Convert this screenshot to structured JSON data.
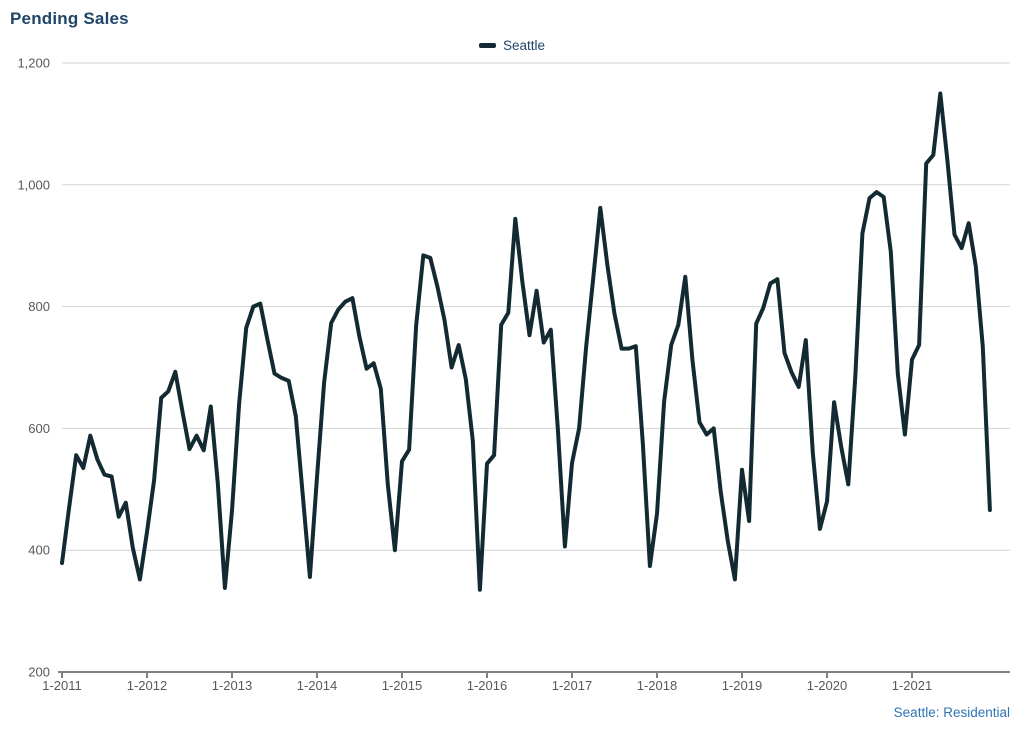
{
  "header": {
    "title": "Pending Sales"
  },
  "legend": {
    "series_label": "Seattle",
    "swatch_color": "#142A33"
  },
  "footer": {
    "source_label": "Seattle: Residential",
    "source_color": "#2E74B5"
  },
  "colors": {
    "title_text": "#1F4568",
    "line": "#142A33",
    "gridline": "#D2D2D2",
    "axis_line": "#808080",
    "tick_text": "#595959",
    "background": "#FFFFFF"
  },
  "chart_data": {
    "type": "line",
    "title": "Pending Sales",
    "xlabel": "",
    "ylabel": "",
    "ylim": [
      200,
      1200
    ],
    "grid": "horizontal",
    "legend_position": "top-center",
    "x_start": "1-2011",
    "x_end": "12-2021",
    "x_frequency": "monthly",
    "yticks": [
      {
        "label": "200",
        "value": 200
      },
      {
        "label": "400",
        "value": 400
      },
      {
        "label": "600",
        "value": 600
      },
      {
        "label": "800",
        "value": 800
      },
      {
        "label": "1,000",
        "value": 1000
      },
      {
        "label": "1,200",
        "value": 1200
      }
    ],
    "xticks": [
      {
        "label": "1-2011",
        "month_index": 0
      },
      {
        "label": "1-2012",
        "month_index": 12
      },
      {
        "label": "1-2013",
        "month_index": 24
      },
      {
        "label": "1-2014",
        "month_index": 36
      },
      {
        "label": "1-2015",
        "month_index": 48
      },
      {
        "label": "1-2016",
        "month_index": 60
      },
      {
        "label": "1-2017",
        "month_index": 72
      },
      {
        "label": "1-2018",
        "month_index": 84
      },
      {
        "label": "1-2019",
        "month_index": 96
      },
      {
        "label": "1-2020",
        "month_index": 108
      },
      {
        "label": "1-2021",
        "month_index": 120
      }
    ],
    "series": [
      {
        "name": "Seattle",
        "color": "#142A33",
        "values": [
          379,
          470,
          556,
          535,
          588,
          549,
          524,
          521,
          455,
          478,
          404,
          352,
          430,
          515,
          650,
          661,
          693,
          628,
          566,
          588,
          564,
          636,
          510,
          338,
          465,
          640,
          765,
          800,
          805,
          746,
          690,
          683,
          678,
          620,
          490,
          356,
          520,
          675,
          773,
          795,
          808,
          814,
          750,
          698,
          707,
          665,
          508,
          400,
          546,
          565,
          770,
          884,
          880,
          833,
          778,
          700,
          737,
          681,
          580,
          335,
          542,
          556,
          770,
          790,
          944,
          840,
          753,
          826,
          741,
          762,
          600,
          406,
          543,
          600,
          735,
          848,
          962,
          868,
          788,
          731,
          731,
          735,
          576,
          374,
          460,
          644,
          737,
          770,
          849,
          713,
          610,
          590,
          600,
          495,
          415,
          352,
          532,
          448,
          772,
          798,
          838,
          845,
          724,
          692,
          668,
          745,
          560,
          435,
          480,
          643,
          570,
          508,
          685,
          920,
          978,
          988,
          980,
          890,
          690,
          590,
          713,
          737,
          1035,
          1049,
          1150,
          1040,
          918,
          896,
          937,
          866,
          734,
          466
        ]
      }
    ]
  }
}
